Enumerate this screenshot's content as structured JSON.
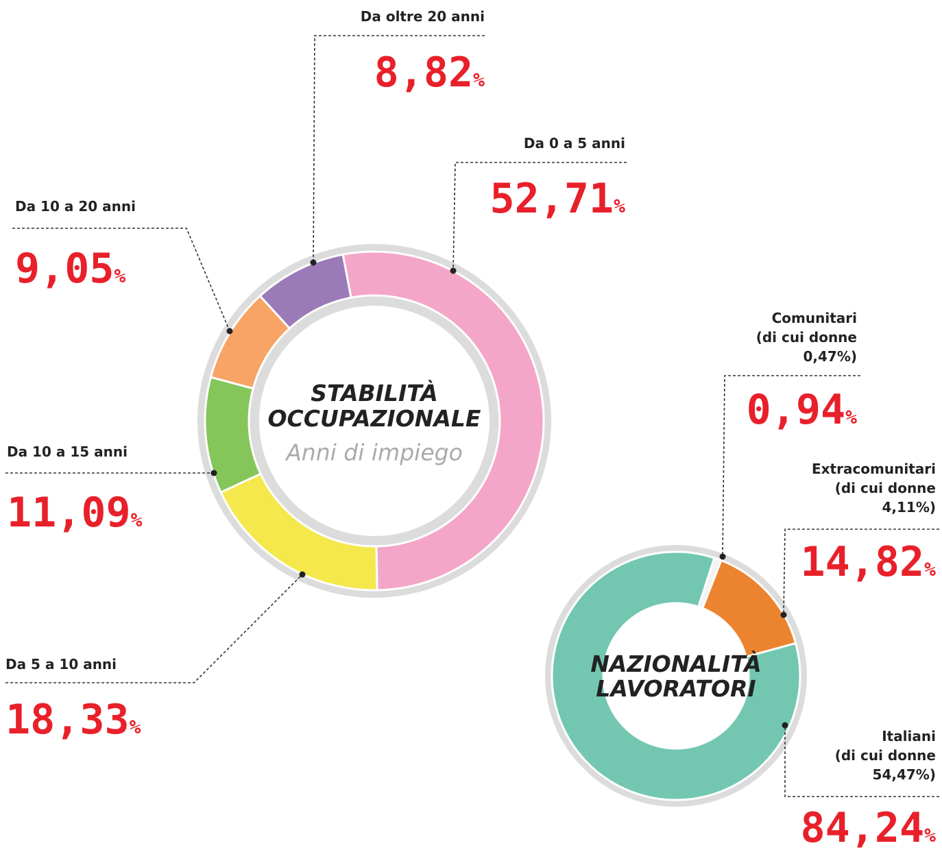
{
  "chart_data": [
    {
      "type": "pie",
      "title": "STABILITÀ OCCUPAZIONALE",
      "subtitle": "Anni di impiego",
      "categories": [
        "Da 0 a 5 anni",
        "Da 5 a 10 anni",
        "Da 10 a 15 anni",
        "Da 10 a 20 anni",
        "Da oltre 20 anni"
      ],
      "values": [
        52.71,
        18.33,
        11.09,
        9.05,
        8.82
      ],
      "value_labels": [
        "52,71%",
        "18,33%",
        "11,09%",
        "9,05%",
        "8,82%"
      ],
      "colors": [
        "#f4a6c8",
        "#f4e84c",
        "#84c65a",
        "#f7a466",
        "#9a7bb7"
      ]
    },
    {
      "type": "pie",
      "title": "NAZIONALITÀ LAVORATORI",
      "categories": [
        "Comunitari\n(di cui donne\n0,47%)",
        "Extracomunitari\n(di cui donne\n4,11%)",
        "Italiani\n(di cui donne\n54,47%)"
      ],
      "values": [
        0.94,
        14.82,
        84.24
      ],
      "value_labels": [
        "0,94%",
        "14,82%",
        "84,24%"
      ],
      "colors": [
        "#f3f3f3",
        "#ec842f",
        "#73c7b1"
      ]
    }
  ]
}
